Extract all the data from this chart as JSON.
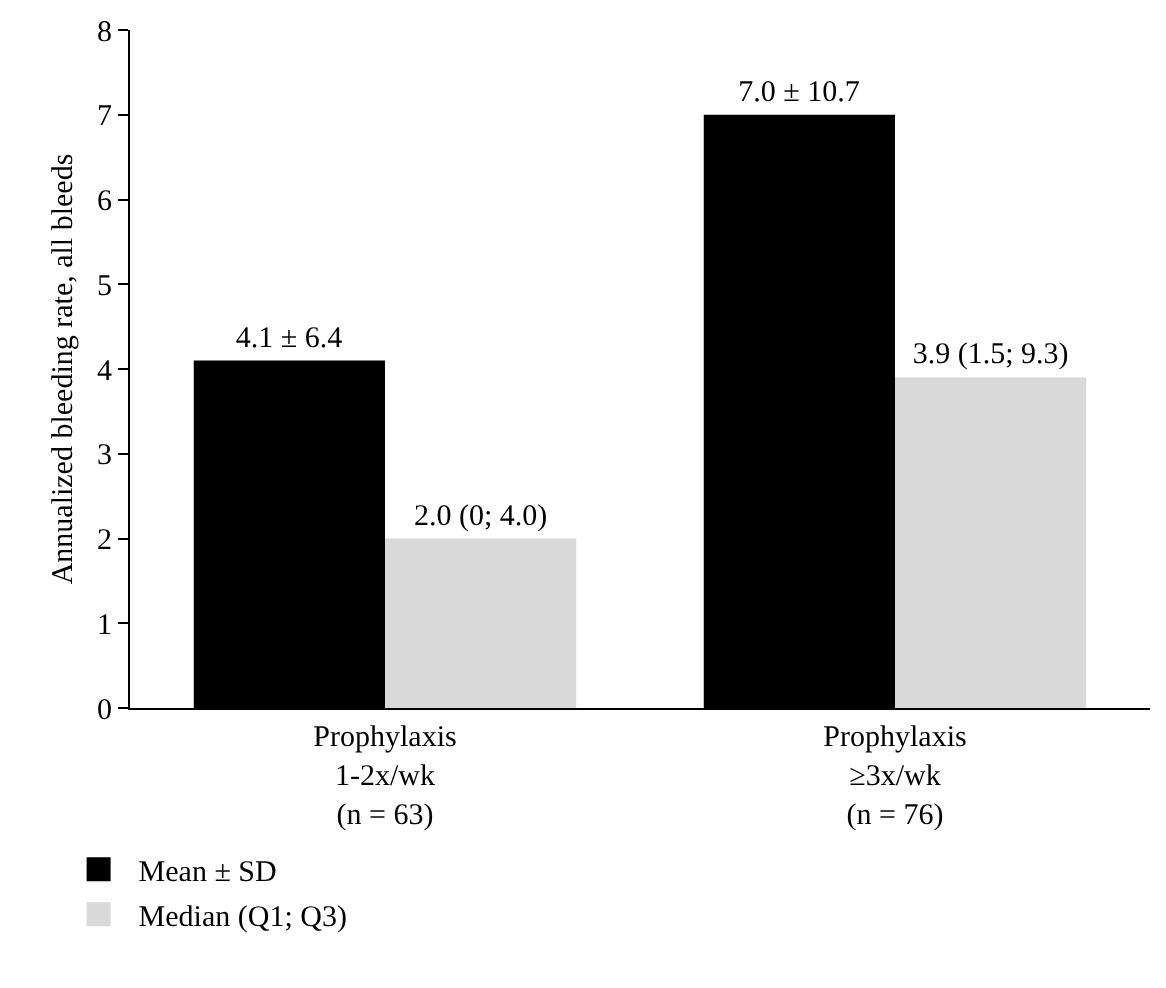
{
  "chart_data": {
    "type": "bar",
    "ylabel": "Annualized bleeding rate, all bleeds",
    "categories": [
      "Prophylaxis\n1-2x/wk\n(n = 63)",
      "Prophylaxis\n≥3x/wk\n(n = 76)"
    ],
    "series": [
      {
        "name": "Mean ± SD",
        "color": "#000000",
        "values": [
          4.1,
          7.0
        ],
        "value_labels": [
          "4.1 ± 6.4",
          "7.0 ± 10.7"
        ]
      },
      {
        "name": "Median (Q1; Q3)",
        "color": "#d9d9d9",
        "values": [
          2.0,
          3.9
        ],
        "value_labels": [
          "2.0 (0; 4.0)",
          "3.9 (1.5; 9.3)"
        ]
      }
    ],
    "ylim": [
      0,
      8
    ],
    "yticks": [
      0,
      1,
      2,
      3,
      4,
      5,
      6,
      7,
      8
    ],
    "grid": false,
    "legend": "bottom left"
  }
}
